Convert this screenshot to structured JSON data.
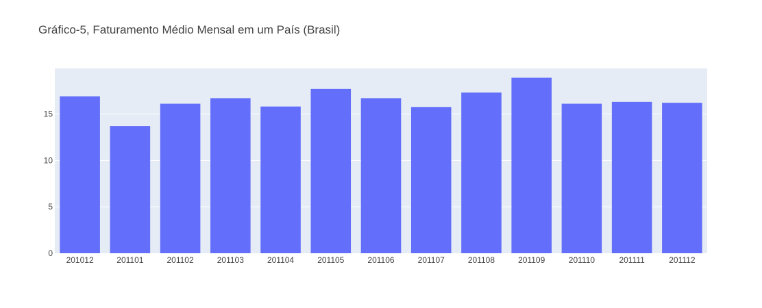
{
  "chart_data": {
    "type": "bar",
    "title": "Gráfico-5, Faturamento Médio Mensal em um País (Brasil)",
    "xlabel": "",
    "ylabel": "",
    "categories": [
      "201012",
      "201101",
      "201102",
      "201103",
      "201104",
      "201105",
      "201106",
      "201107",
      "201108",
      "201109",
      "201110",
      "201111",
      "201112"
    ],
    "values": [
      16.9,
      13.7,
      16.1,
      16.7,
      15.8,
      17.7,
      16.7,
      15.75,
      17.3,
      18.9,
      16.1,
      16.3,
      16.2
    ],
    "ylim": [
      0,
      19.9
    ],
    "yticks": [
      0,
      5,
      10,
      15
    ],
    "grid": true,
    "colors": {
      "bar": "#636efa",
      "plot_background": "#e5ecf6",
      "grid": "#ffffff",
      "text": "#444444"
    }
  }
}
